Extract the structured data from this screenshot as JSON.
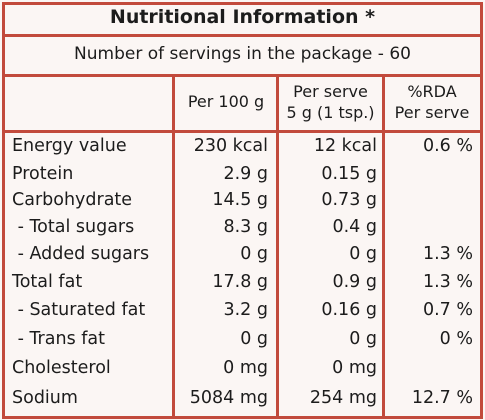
{
  "title": "Nutritional Information *",
  "servings_line": "Number of servings in the package - 60",
  "columns": {
    "per100": "Per 100 g",
    "per_serve_l1": "Per serve",
    "per_serve_l2": "5 g (1 tsp.)",
    "rda_l1": "%RDA",
    "rda_l2": "Per serve"
  },
  "rows": [
    {
      "name": "Energy value",
      "per100": "230 kcal",
      "serve": "12 kcal",
      "rda": "0.6 %"
    },
    {
      "name": "Protein",
      "per100": "2.9 g",
      "serve": "0.15 g",
      "rda": ""
    },
    {
      "name": "Carbohydrate",
      "per100": "14.5 g",
      "serve": "0.73 g",
      "rda": ""
    },
    {
      "name": " - Total sugars",
      "per100": "8.3 g",
      "serve": "0.4 g",
      "rda": ""
    },
    {
      "name": " - Added sugars",
      "per100": "0 g",
      "serve": "0 g",
      "rda": "1.3 %"
    },
    {
      "name": "Total fat",
      "per100": "17.8 g",
      "serve": "0.9 g",
      "rda": "1.3 %"
    },
    {
      "name": " - Saturated fat",
      "per100": "3.2 g",
      "serve": "0.16 g",
      "rda": "0.7 %"
    },
    {
      "name": " - Trans fat",
      "per100": "0 g",
      "serve": "0 g",
      "rda": "0 %"
    },
    {
      "name": "Cholesterol",
      "per100": "0 mg",
      "serve": "0 mg",
      "rda": ""
    },
    {
      "name": "Sodium",
      "per100": "5084 mg",
      "serve": "254 mg",
      "rda": "12.7 %"
    }
  ]
}
